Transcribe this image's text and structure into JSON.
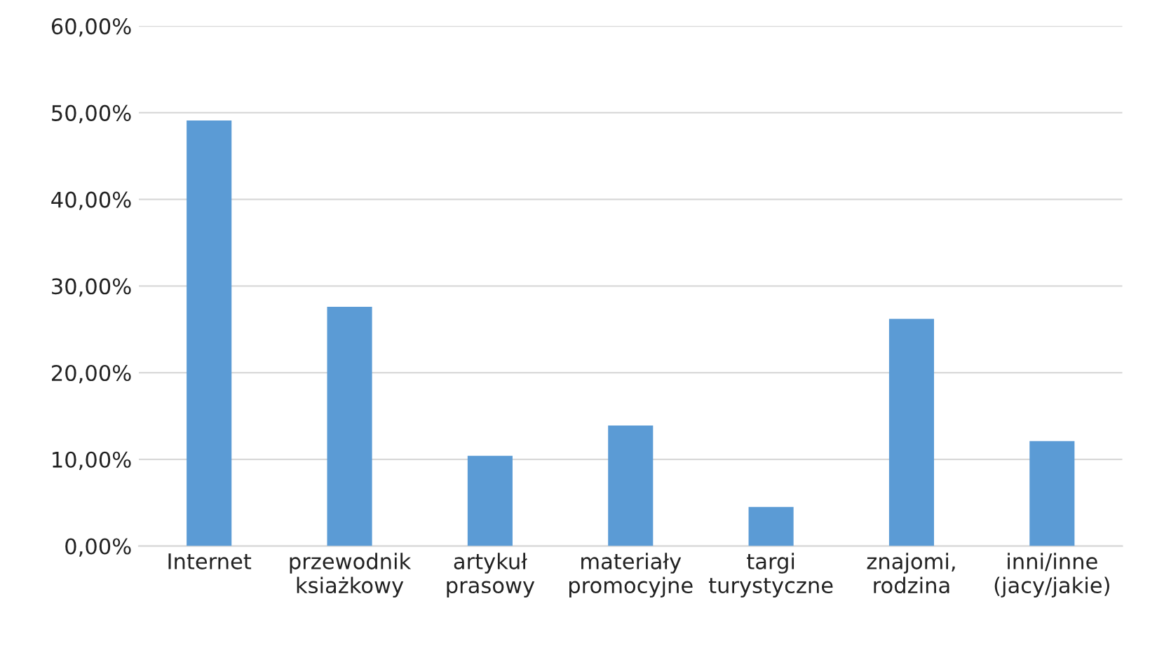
{
  "chart_data": {
    "type": "bar",
    "categories": [
      "Internet",
      "przewodnik\nksiażkowy",
      "artykuł\nprasowy",
      "materiały\npromocyjne",
      "targi\nturystyczne",
      "znajomi,\nrodzina",
      "inni/inne\n(jacy/jakie)"
    ],
    "values": [
      49.1,
      27.6,
      10.4,
      13.9,
      4.5,
      26.2,
      12.1
    ],
    "color": "#5b9bd5",
    "ylim": [
      0,
      60
    ],
    "yticks": [
      {
        "value": 0,
        "label": "0,00%"
      },
      {
        "value": 10,
        "label": "10,00%"
      },
      {
        "value": 20,
        "label": "20,00%"
      },
      {
        "value": 30,
        "label": "30,00%"
      },
      {
        "value": 40,
        "label": "40,00%"
      },
      {
        "value": 50,
        "label": "50,00%"
      },
      {
        "value": 60,
        "label": "60,00%"
      }
    ],
    "grid": "y"
  }
}
